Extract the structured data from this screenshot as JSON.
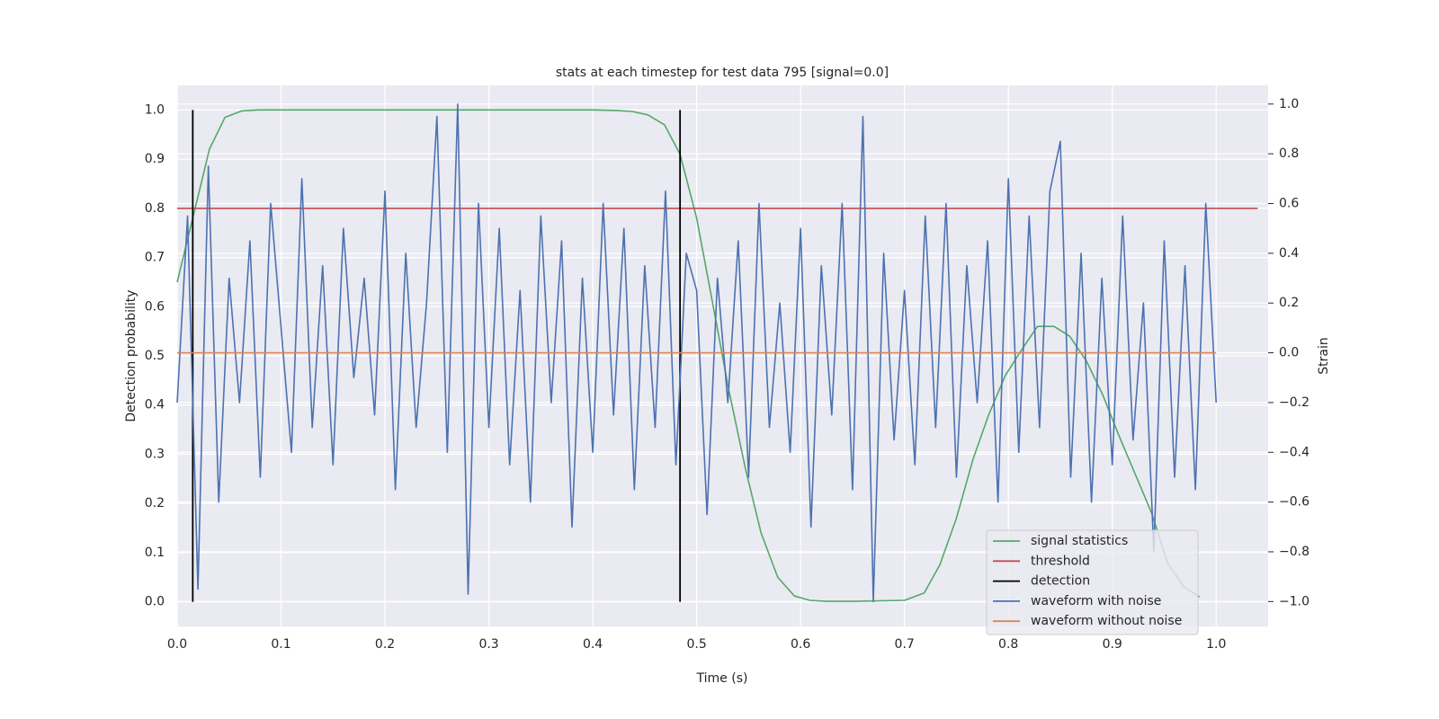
{
  "chart_data": {
    "type": "line",
    "title": "stats at each timestep for test data 795 [signal=0.0]",
    "x_label": "Time (s)",
    "y_label": "Detection probability",
    "y2_label": "Strain",
    "xlim": [
      0,
      1.05
    ],
    "ylim": [
      -0.05,
      1.05
    ],
    "y2lim": [
      -1.1,
      1.075
    ],
    "xticks": [
      {
        "value": 0,
        "label": "0.0"
      },
      0.1,
      0.2,
      0.3,
      0.4,
      0.5,
      0.6,
      0.7,
      0.8,
      0.9,
      {
        "value": 1,
        "label": "1.0"
      }
    ],
    "yticks": [
      {
        "value": 0,
        "label": "0.0"
      },
      0.1,
      0.2,
      0.3,
      0.4,
      0.5,
      0.6,
      0.7,
      0.8,
      0.9,
      {
        "value": 1,
        "label": "1.0"
      }
    ],
    "y2ticks": [
      {
        "value": -1,
        "label": "−1.0"
      },
      {
        "value": -0.8,
        "label": "−0.8"
      },
      {
        "value": -0.6,
        "label": "−0.6"
      },
      {
        "value": -0.4,
        "label": "−0.4"
      },
      {
        "value": -0.2,
        "label": "−0.2"
      },
      {
        "value": 0,
        "label": "0.0"
      },
      0.2,
      0.4,
      0.6,
      0.8,
      {
        "value": 1,
        "label": "1.0"
      }
    ],
    "grid": true,
    "legend": "lower right",
    "series": [
      {
        "name": "signal statistics",
        "color": "#55a868",
        "axis": "y",
        "x": [
          0,
          0.015,
          0.031,
          0.046,
          0.062,
          0.078,
          0.1,
          0.2,
          0.3,
          0.4,
          0.422,
          0.438,
          0.453,
          0.469,
          0.484,
          0.5,
          0.516,
          0.531,
          0.547,
          0.562,
          0.578,
          0.594,
          0.609,
          0.625,
          0.65,
          0.7,
          0.719,
          0.734,
          0.75,
          0.766,
          0.781,
          0.797,
          0.812,
          0.828,
          0.844,
          0.859,
          0.875,
          0.891,
          0.906,
          0.922,
          0.938,
          0.953,
          0.969,
          0.984
        ],
        "values": [
          0.65,
          0.78,
          0.92,
          0.985,
          0.998,
          1.0,
          1.0,
          1.0,
          1.0,
          1.0,
          0.999,
          0.997,
          0.99,
          0.97,
          0.91,
          0.78,
          0.6,
          0.43,
          0.27,
          0.14,
          0.05,
          0.012,
          0.003,
          0.001,
          0.001,
          0.003,
          0.018,
          0.075,
          0.17,
          0.29,
          0.38,
          0.46,
          0.51,
          0.56,
          0.56,
          0.54,
          0.49,
          0.42,
          0.34,
          0.26,
          0.18,
          0.08,
          0.03,
          0.01
        ]
      },
      {
        "name": "threshold",
        "color": "#c44e52",
        "axis": "y",
        "x": [
          0,
          1.04
        ],
        "values": [
          0.8,
          0.8
        ]
      },
      {
        "name": "detection",
        "color": "#000000",
        "axis": "y",
        "kind": "vlines",
        "x": [
          0.015,
          0.484
        ],
        "ymin": 0,
        "ymax": 1
      },
      {
        "name": "waveform with noise",
        "color": "#4c72b0",
        "axis": "y2",
        "x": [
          0,
          0.01,
          0.02,
          0.03,
          0.04,
          0.05,
          0.06,
          0.07,
          0.08,
          0.09,
          0.1,
          0.11,
          0.12,
          0.13,
          0.14,
          0.15,
          0.16,
          0.17,
          0.18,
          0.19,
          0.2,
          0.21,
          0.22,
          0.23,
          0.24,
          0.25,
          0.26,
          0.27,
          0.28,
          0.29,
          0.3,
          0.31,
          0.32,
          0.33,
          0.34,
          0.35,
          0.36,
          0.37,
          0.38,
          0.39,
          0.4,
          0.41,
          0.42,
          0.43,
          0.44,
          0.45,
          0.46,
          0.47,
          0.48,
          0.49,
          0.5,
          0.51,
          0.52,
          0.53,
          0.54,
          0.55,
          0.56,
          0.57,
          0.58,
          0.59,
          0.6,
          0.61,
          0.62,
          0.63,
          0.64,
          0.65,
          0.66,
          0.67,
          0.68,
          0.69,
          0.7,
          0.71,
          0.72,
          0.73,
          0.74,
          0.75,
          0.76,
          0.77,
          0.78,
          0.79,
          0.8,
          0.81,
          0.82,
          0.83,
          0.84,
          0.85,
          0.86,
          0.87,
          0.88,
          0.89,
          0.9,
          0.91,
          0.92,
          0.93,
          0.94,
          0.95,
          0.96,
          0.97,
          0.98,
          0.99,
          1
        ],
        "values": [
          -0.2,
          0.55,
          -0.95,
          0.75,
          -0.6,
          0.3,
          -0.2,
          0.45,
          -0.5,
          0.6,
          0.1,
          -0.4,
          0.7,
          -0.3,
          0.35,
          -0.45,
          0.5,
          -0.1,
          0.3,
          -0.25,
          0.65,
          -0.55,
          0.4,
          -0.3,
          0.2,
          0.95,
          -0.4,
          1.0,
          -0.97,
          0.6,
          -0.3,
          0.5,
          -0.45,
          0.25,
          -0.6,
          0.55,
          -0.2,
          0.45,
          -0.7,
          0.3,
          -0.4,
          0.6,
          -0.25,
          0.5,
          -0.55,
          0.35,
          -0.3,
          0.65,
          -0.45,
          0.4,
          0.25,
          -0.65,
          0.3,
          -0.2,
          0.45,
          -0.5,
          0.6,
          -0.3,
          0.2,
          -0.4,
          0.5,
          -0.7,
          0.35,
          -0.25,
          0.6,
          -0.55,
          0.95,
          -1.0,
          0.4,
          -0.35,
          0.25,
          -0.45,
          0.55,
          -0.3,
          0.6,
          -0.5,
          0.35,
          -0.2,
          0.45,
          -0.6,
          0.7,
          -0.4,
          0.55,
          -0.3,
          0.65,
          0.85,
          -0.5,
          0.4,
          -0.6,
          0.3,
          -0.45,
          0.55,
          -0.35,
          0.2,
          -0.8,
          0.45,
          -0.5,
          0.35,
          -0.55,
          0.6,
          -0.2
        ]
      },
      {
        "name": "waveform without noise",
        "color": "#dd8452",
        "axis": "y2",
        "x": [
          0,
          1
        ],
        "values": [
          0,
          0
        ]
      }
    ]
  }
}
